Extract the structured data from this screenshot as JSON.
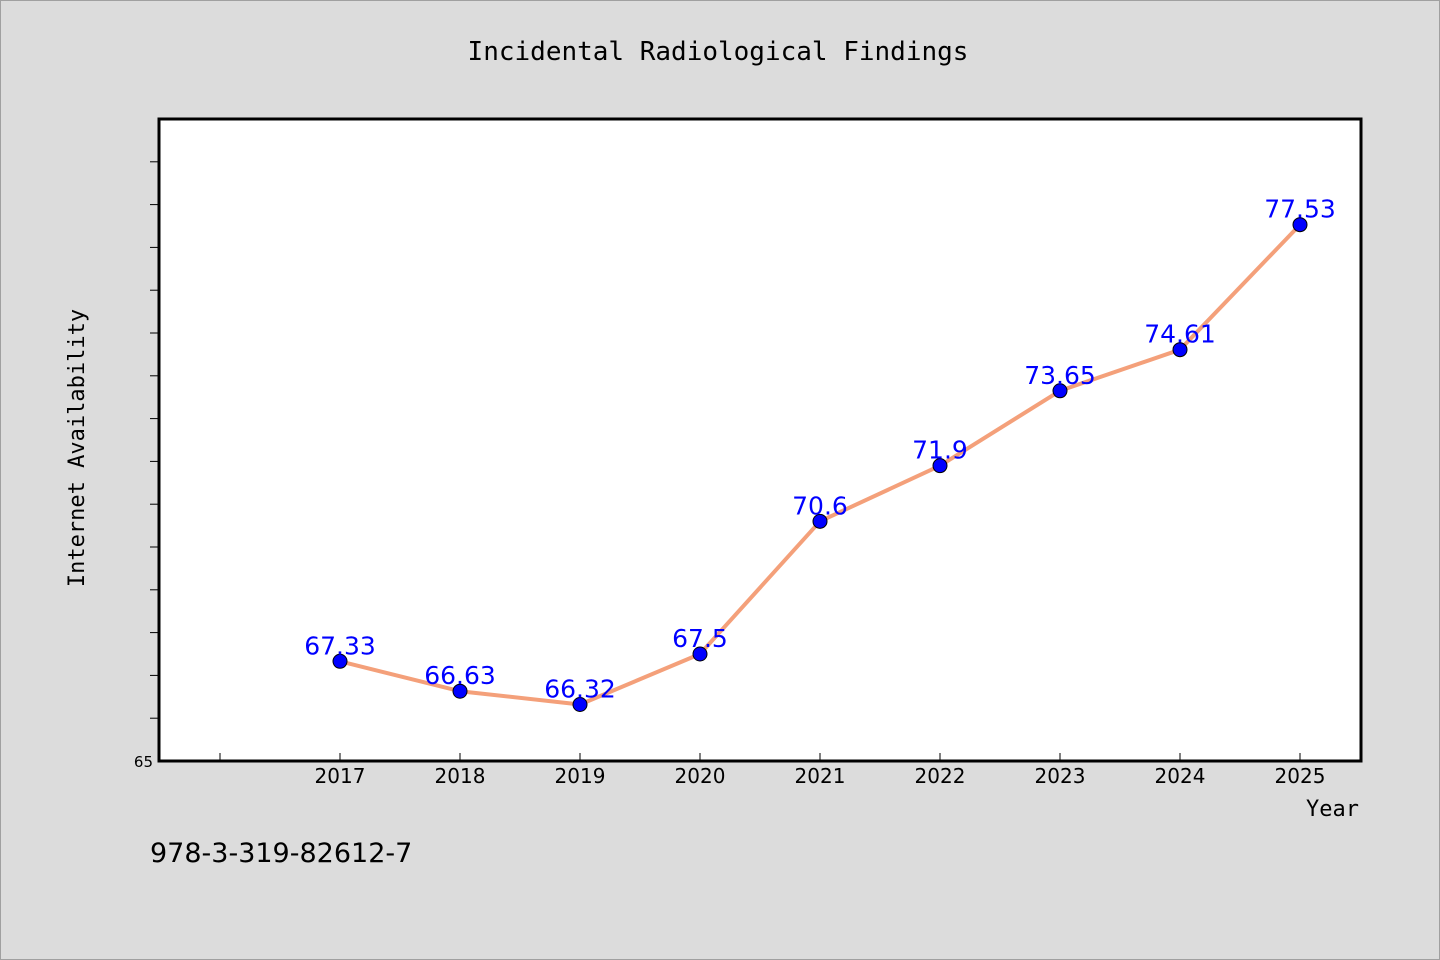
{
  "chart_data": {
    "type": "line",
    "title": "Incidental Radiological Findings",
    "xlabel": "Year",
    "ylabel": "Internet Availability",
    "x": [
      "2017",
      "2018",
      "2019",
      "2020",
      "2021",
      "2022",
      "2023",
      "2024",
      "2025"
    ],
    "series": [
      {
        "values": [
          67.33,
          66.63,
          66.32,
          67.5,
          70.6,
          71.9,
          73.65,
          74.61,
          77.53
        ],
        "labels": [
          "67.33",
          "66.63",
          "66.32",
          "67.5",
          "70.6",
          "71.9",
          "73.65",
          "74.61",
          "77.53"
        ],
        "line_color": "#f4a07a",
        "marker_color": "#0000ff",
        "label_color": "#0000ff"
      }
    ],
    "ylim": [
      65,
      80
    ],
    "yticks": [
      {
        "value": 65,
        "label": "65"
      }
    ],
    "grid": false,
    "legend": "none"
  },
  "footnote": "978-3-319-82612-7",
  "colors": {
    "background": "#dcdcdc",
    "plot_background": "#ffffff"
  }
}
